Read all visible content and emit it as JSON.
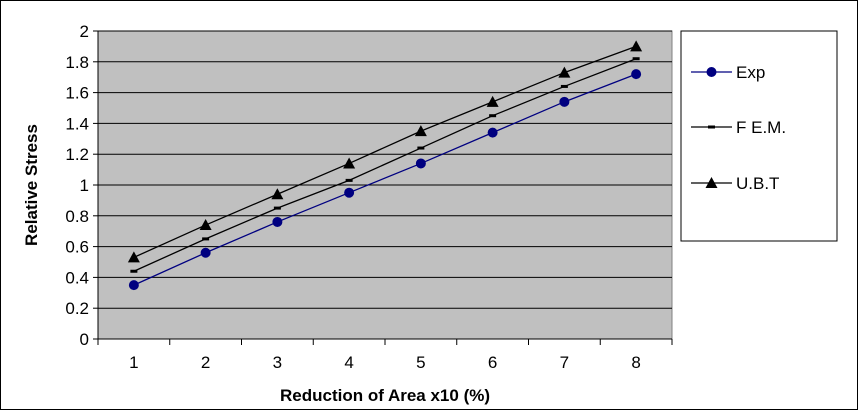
{
  "chart_data": {
    "type": "line",
    "title": "",
    "xlabel": "Reduction of Area x10  (%)",
    "ylabel": "Relative Stress",
    "categories": [
      "1",
      "2",
      "3",
      "4",
      "5",
      "6",
      "7",
      "8"
    ],
    "ylim": [
      0,
      2
    ],
    "yticks": [
      "0",
      "0.2",
      "0.4",
      "0.6",
      "0.8",
      "1",
      "1.2",
      "1.4",
      "1.6",
      "1.8",
      "2"
    ],
    "grid": true,
    "legend_position": "right",
    "plot_background": "#c0c0c0",
    "series": [
      {
        "name": "Exp",
        "marker": "circle",
        "color": "#000080",
        "values": [
          0.35,
          0.56,
          0.76,
          0.95,
          1.14,
          1.34,
          1.54,
          1.72
        ]
      },
      {
        "name": "F E.M.",
        "marker": "dash",
        "color": "#000000",
        "values": [
          0.44,
          0.65,
          0.85,
          1.03,
          1.24,
          1.45,
          1.64,
          1.82
        ]
      },
      {
        "name": "U.B.T",
        "marker": "triangle",
        "color": "#000000",
        "values": [
          0.53,
          0.74,
          0.94,
          1.14,
          1.35,
          1.54,
          1.73,
          1.9
        ]
      }
    ]
  }
}
